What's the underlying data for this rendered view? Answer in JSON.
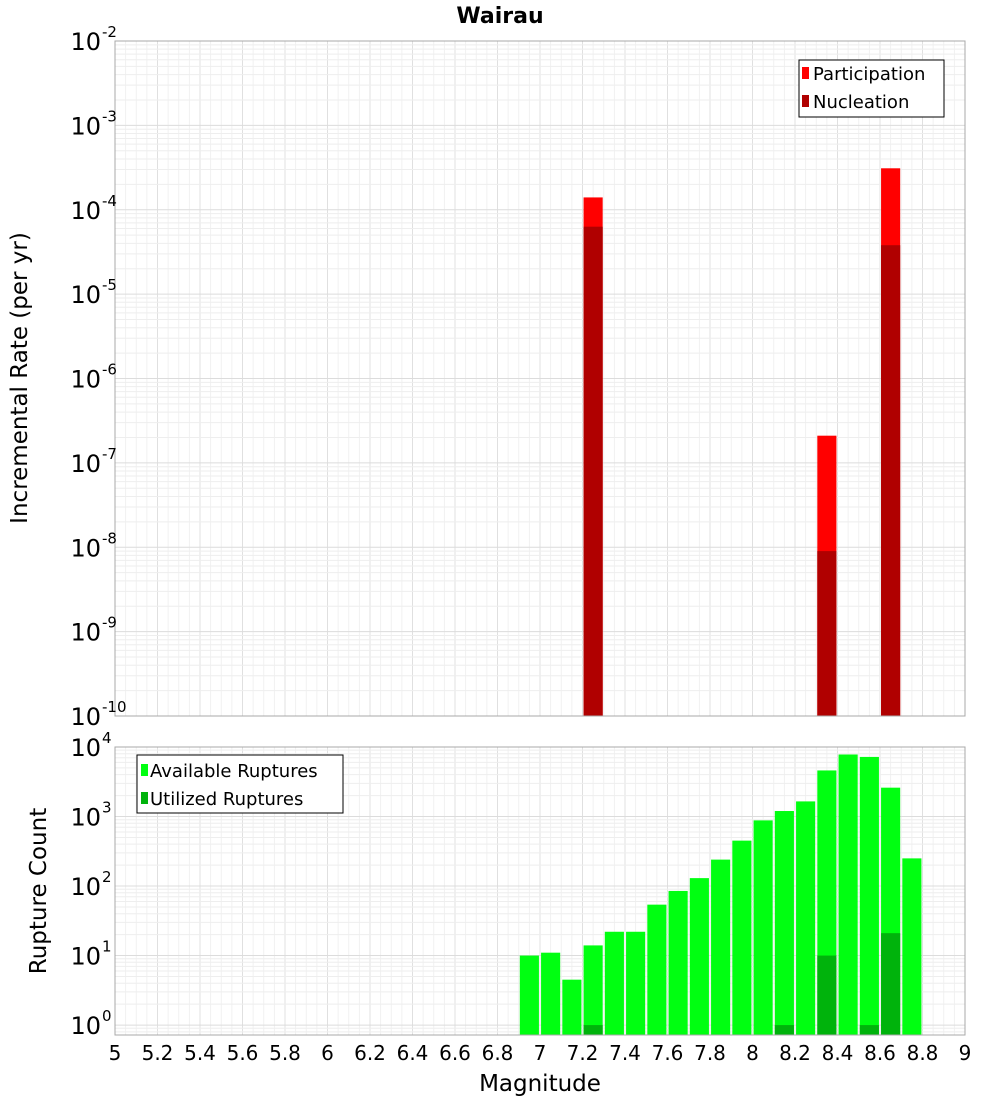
{
  "chart_data": [
    {
      "type": "bar",
      "title": "Wairau",
      "ylabel": "Incremental Rate (per yr)",
      "xlabel": "",
      "y_scale": "log",
      "ylim": [
        1e-10,
        0.01
      ],
      "xlim": [
        5,
        9
      ],
      "bar_width": 0.09,
      "grid": true,
      "legend_position": "top-right",
      "y_ticks": [
        {
          "base": "10",
          "exp": "-10",
          "value": 1e-10
        },
        {
          "base": "10",
          "exp": "-9",
          "value": 1e-09
        },
        {
          "base": "10",
          "exp": "-8",
          "value": 1e-08
        },
        {
          "base": "10",
          "exp": "-7",
          "value": 1e-07
        },
        {
          "base": "10",
          "exp": "-6",
          "value": 1e-06
        },
        {
          "base": "10",
          "exp": "-5",
          "value": 1e-05
        },
        {
          "base": "10",
          "exp": "-4",
          "value": 0.0001
        },
        {
          "base": "10",
          "exp": "-3",
          "value": 0.001
        },
        {
          "base": "10",
          "exp": "-2",
          "value": 0.01
        }
      ],
      "series": [
        {
          "name": "Participation",
          "color": "#ff0000",
          "points": [
            {
              "x": 7.25,
              "y": 0.00014
            },
            {
              "x": 8.35,
              "y": 2.1e-07
            },
            {
              "x": 8.65,
              "y": 0.00031
            }
          ]
        },
        {
          "name": "Nucleation",
          "color": "#b00000",
          "points": [
            {
              "x": 7.25,
              "y": 6.3e-05
            },
            {
              "x": 8.35,
              "y": 9e-09
            },
            {
              "x": 8.65,
              "y": 3.8e-05
            }
          ]
        }
      ]
    },
    {
      "type": "bar",
      "title": "",
      "ylabel": "Rupture Count",
      "xlabel": "Magnitude",
      "y_scale": "log",
      "ylim": [
        0.72,
        10000
      ],
      "xlim": [
        5,
        9
      ],
      "bar_width": 0.09,
      "grid": true,
      "legend_position": "top-left",
      "y_ticks": [
        {
          "base": "10",
          "exp": "0",
          "value": 1
        },
        {
          "base": "10",
          "exp": "1",
          "value": 10
        },
        {
          "base": "10",
          "exp": "2",
          "value": 100
        },
        {
          "base": "10",
          "exp": "3",
          "value": 1000
        },
        {
          "base": "10",
          "exp": "4",
          "value": 10000
        }
      ],
      "x_tick_labels": [
        "5",
        "5.2",
        "5.4",
        "5.6",
        "5.8",
        "6",
        "6.2",
        "6.4",
        "6.6",
        "6.8",
        "7",
        "7.2",
        "7.4",
        "7.6",
        "7.8",
        "8",
        "8.2",
        "8.4",
        "8.6",
        "8.8",
        "9"
      ],
      "series": [
        {
          "name": "Available Ruptures",
          "color": "#00ff11",
          "points": [
            {
              "x": 6.95,
              "y": 10
            },
            {
              "x": 7.05,
              "y": 11
            },
            {
              "x": 7.15,
              "y": 4.5
            },
            {
              "x": 7.25,
              "y": 14
            },
            {
              "x": 7.35,
              "y": 22
            },
            {
              "x": 7.45,
              "y": 22
            },
            {
              "x": 7.55,
              "y": 54
            },
            {
              "x": 7.65,
              "y": 85
            },
            {
              "x": 7.75,
              "y": 130
            },
            {
              "x": 7.85,
              "y": 240
            },
            {
              "x": 7.95,
              "y": 450
            },
            {
              "x": 8.05,
              "y": 880
            },
            {
              "x": 8.15,
              "y": 1200
            },
            {
              "x": 8.25,
              "y": 1650
            },
            {
              "x": 8.35,
              "y": 4600
            },
            {
              "x": 8.45,
              "y": 7800
            },
            {
              "x": 8.55,
              "y": 7200
            },
            {
              "x": 8.65,
              "y": 2600
            },
            {
              "x": 8.75,
              "y": 250
            }
          ]
        },
        {
          "name": "Utilized Ruptures",
          "color": "#00b30c",
          "points": [
            {
              "x": 7.25,
              "y": 1
            },
            {
              "x": 8.15,
              "y": 1
            },
            {
              "x": 8.35,
              "y": 10
            },
            {
              "x": 8.55,
              "y": 1
            },
            {
              "x": 8.65,
              "y": 21
            }
          ]
        }
      ]
    }
  ]
}
